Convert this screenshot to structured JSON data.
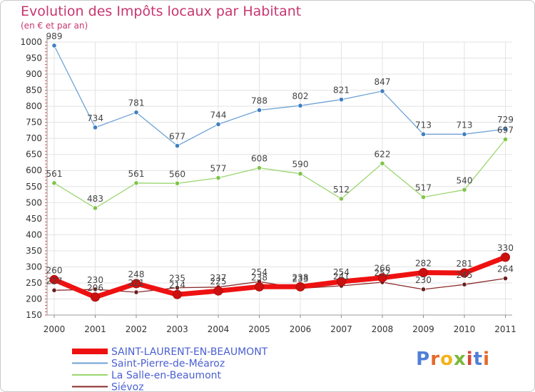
{
  "header": {
    "title": "Evolution des Impôts locaux par Habitant",
    "subtitle": "(en € et par an)"
  },
  "logo": {
    "text": "Proxiti",
    "letters": [
      {
        "ch": "P",
        "color": "#4f7fd8"
      },
      {
        "ch": "r",
        "color": "#e46a2a"
      },
      {
        "ch": "o",
        "color": "#f2b41c"
      },
      {
        "ch": "x",
        "color": "#7ab83a"
      },
      {
        "ch": "i",
        "color": "#d9463a"
      },
      {
        "ch": "t",
        "color": "#4f7fd8"
      },
      {
        "ch": "i",
        "color": "#e46a2a"
      }
    ]
  },
  "chart_data": {
    "type": "line",
    "x": [
      "2000",
      "2001",
      "2002",
      "2003",
      "2004",
      "2005",
      "2006",
      "2007",
      "2008",
      "2009",
      "2010",
      "2011"
    ],
    "ylim": [
      150,
      1000
    ],
    "yticks": [
      150,
      200,
      250,
      300,
      350,
      400,
      450,
      500,
      550,
      600,
      650,
      700,
      750,
      800,
      850,
      900,
      950,
      1000
    ],
    "grid": true,
    "legend_position": "bottom-left",
    "series": [
      {
        "name": "SAINT-LAURENT-EN-BEAUMONT",
        "color": "#ee1111",
        "marker": "#cc1010",
        "width": 7,
        "radius": 6,
        "values": [
          260,
          206,
          248,
          214,
          225,
          238,
          238,
          254,
          266,
          282,
          281,
          330
        ],
        "labels": [
          "260",
          "206",
          "248",
          "214",
          "225",
          "238",
          "238",
          "254",
          "266",
          "282",
          "281",
          "330"
        ]
      },
      {
        "name": "Saint-Pierre-de-Méaroz",
        "color": "#6ea2d6",
        "marker": "#3f7fc0",
        "width": 1.3,
        "radius": 3.2,
        "values": [
          989,
          734,
          781,
          677,
          744,
          788,
          802,
          821,
          847,
          713,
          713,
          729
        ],
        "labels": [
          "989",
          "734",
          "781",
          "677",
          "744",
          "788",
          "802",
          "821",
          "847",
          "713",
          "713",
          "729"
        ]
      },
      {
        "name": "La Salle-en-Beaumont",
        "color": "#9bd66e",
        "marker": "#7fc44a",
        "width": 1.3,
        "radius": 3.2,
        "values": [
          561,
          483,
          561,
          560,
          577,
          608,
          590,
          512,
          622,
          517,
          540,
          697
        ],
        "labels": [
          "561",
          "483",
          "561",
          "560",
          "577",
          "608",
          "590",
          "512",
          "622",
          "517",
          "540",
          "697"
        ]
      },
      {
        "name": "Siévoz",
        "color": "#8a2a2a",
        "marker": "#6b1e1e",
        "width": 1.3,
        "radius": 3.2,
        "values": [
          227,
          230,
          221,
          235,
          237,
          254,
          233,
          241,
          252,
          230,
          245,
          264
        ],
        "labels": [
          "227",
          "230",
          "221",
          "235",
          "237",
          "254",
          "233",
          "241",
          "252",
          "230",
          "245",
          "264"
        ]
      }
    ]
  }
}
